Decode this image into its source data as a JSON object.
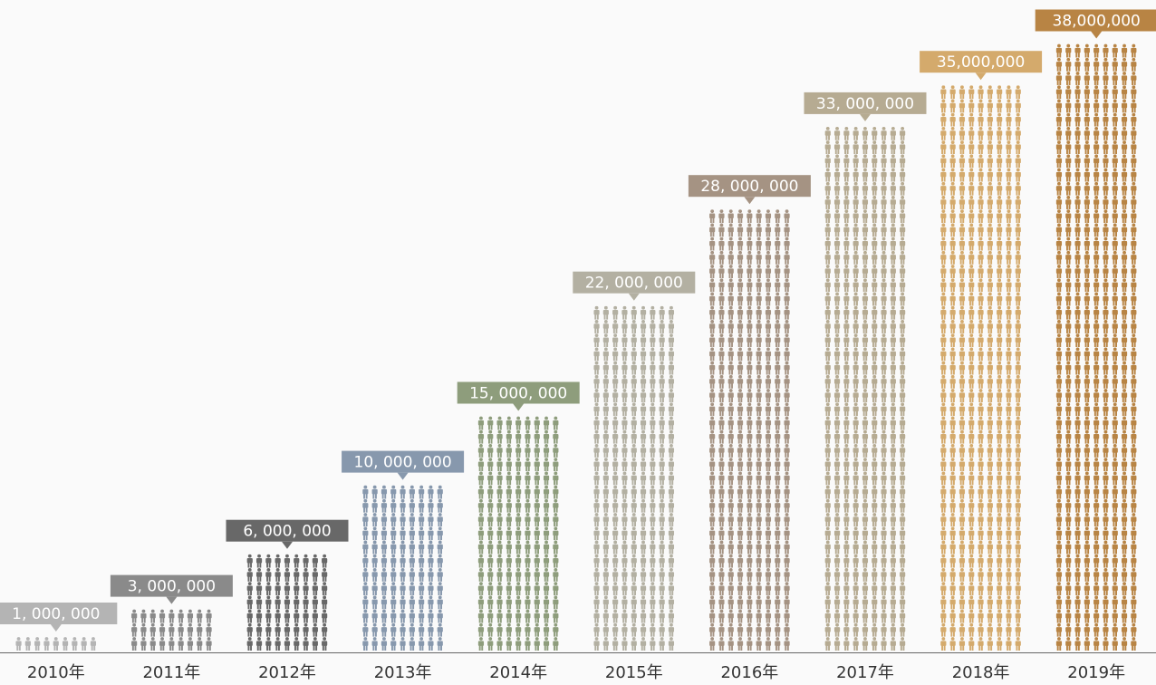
{
  "chart_data": {
    "type": "bar",
    "title": "",
    "xlabel": "",
    "ylabel": "",
    "ylim": [
      0,
      38000000
    ],
    "grid": false,
    "categories": [
      "2010年",
      "2011年",
      "2012年",
      "2013年",
      "2014年",
      "2015年",
      "2016年",
      "2017年",
      "2018年",
      "2019年"
    ],
    "values": [
      1000000,
      3000000,
      6000000,
      10000000,
      15000000,
      22000000,
      28000000,
      33000000,
      35000000,
      38000000
    ],
    "value_labels": [
      "1, 000, 000",
      "3, 000, 000",
      "6, 000, 000",
      "10, 000, 000",
      "15, 000, 000",
      "22, 000, 000",
      "28, 000, 000",
      "33, 000, 000",
      "35,000,000",
      "38,000,000"
    ],
    "mark_icon": "person-icon",
    "colors": [
      "#b4b4b4",
      "#8a8a8a",
      "#686868",
      "#8798ad",
      "#8e9d7c",
      "#b3b0a2",
      "#a59383",
      "#b6ab92",
      "#d4aa6c",
      "#b88444"
    ]
  }
}
